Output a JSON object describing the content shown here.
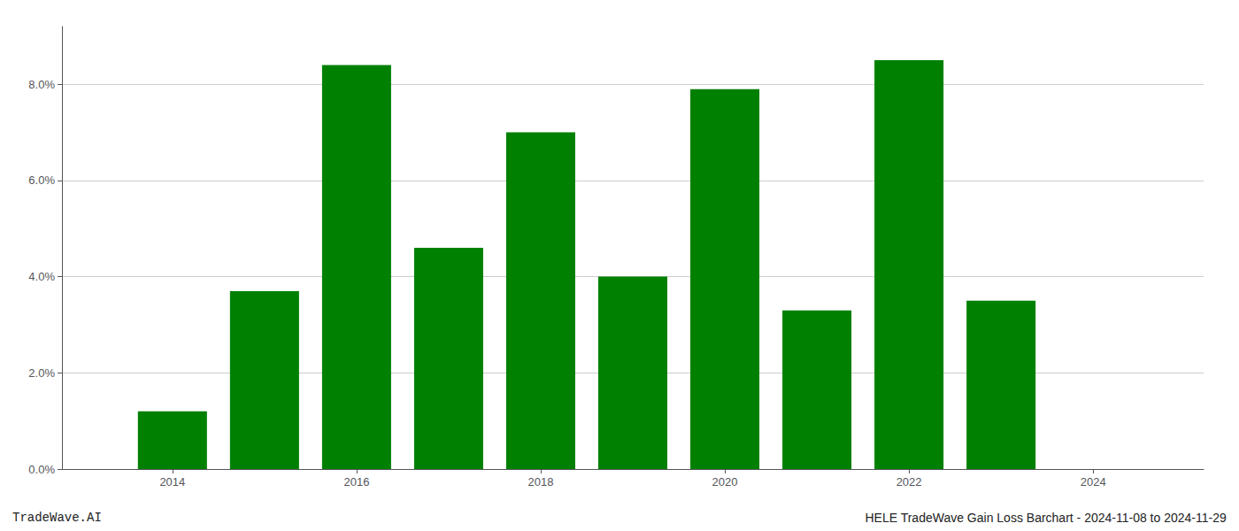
{
  "chart_data": {
    "type": "bar",
    "x": [
      2014,
      2015,
      2016,
      2017,
      2018,
      2019,
      2020,
      2021,
      2022,
      2023
    ],
    "values": [
      0.012,
      0.037,
      0.084,
      0.046,
      0.07,
      0.04,
      0.079,
      0.033,
      0.085,
      0.035
    ],
    "color": "#008000",
    "xlim": [
      2012.8,
      2025.2
    ],
    "xticks": [
      2014,
      2016,
      2018,
      2020,
      2022,
      2024
    ],
    "ylim": [
      0,
      0.092
    ],
    "yticks": [
      {
        "value": 0.0,
        "label": "0.0%"
      },
      {
        "value": 0.02,
        "label": "2.0%"
      },
      {
        "value": 0.04,
        "label": "4.0%"
      },
      {
        "value": 0.06,
        "label": "6.0%"
      },
      {
        "value": 0.08,
        "label": "8.0%"
      }
    ],
    "grid": true,
    "annotations": [
      "TradeWave.AI",
      "HELE TradeWave Gain Loss Barchart - 2024-11-08 to 2024-11-29"
    ]
  }
}
